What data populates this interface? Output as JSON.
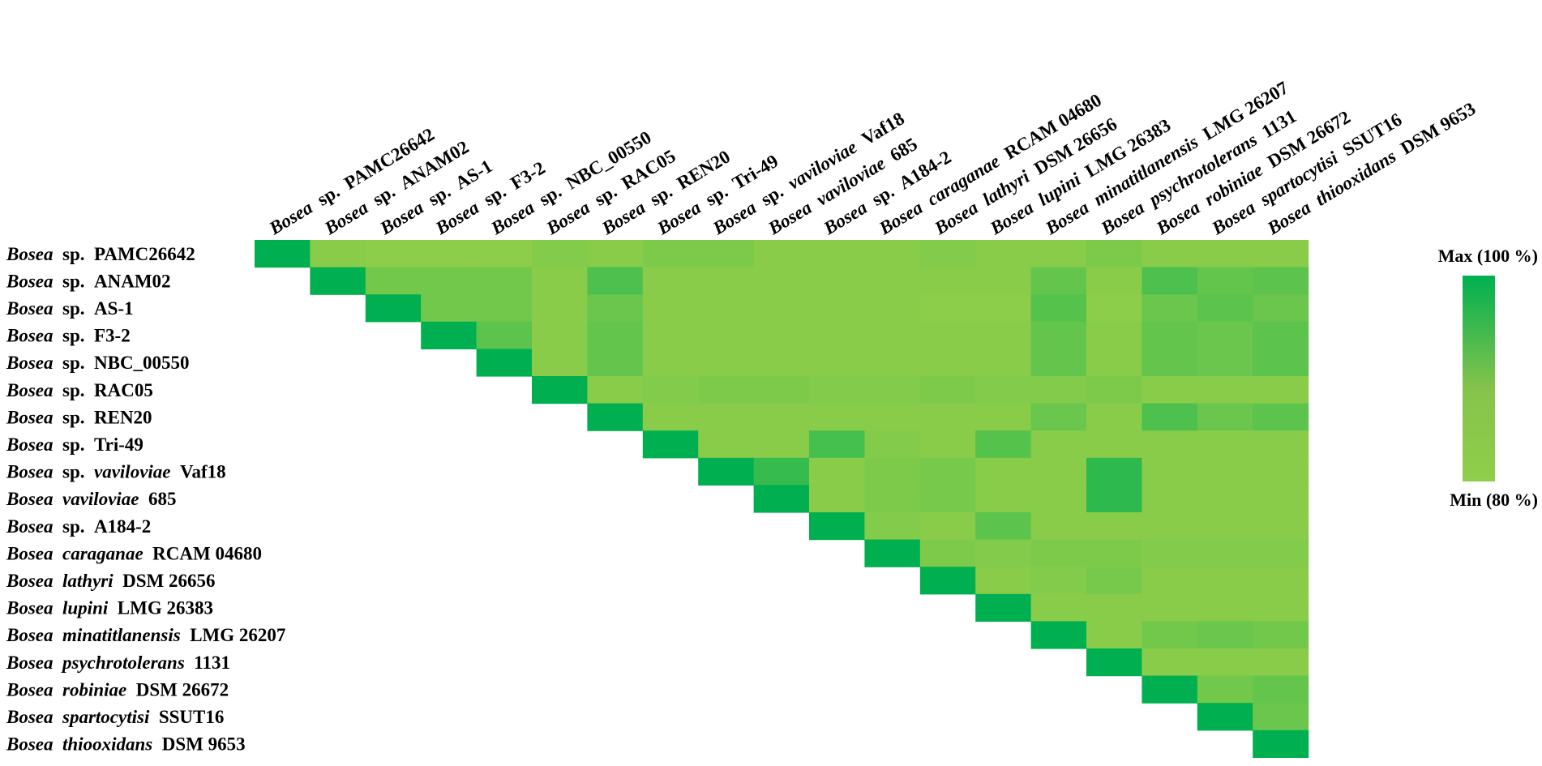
{
  "chart_data": {
    "type": "heatmap",
    "layout": "upper-triangular",
    "labels": [
      {
        "genus": "Bosea",
        "qualifier": "sp.",
        "epithet": "",
        "strain": "PAMC26642"
      },
      {
        "genus": "Bosea",
        "qualifier": "sp.",
        "epithet": "",
        "strain": "ANAM02"
      },
      {
        "genus": "Bosea",
        "qualifier": "sp.",
        "epithet": "",
        "strain": "AS-1"
      },
      {
        "genus": "Bosea",
        "qualifier": "sp.",
        "epithet": "",
        "strain": "F3-2"
      },
      {
        "genus": "Bosea",
        "qualifier": "sp.",
        "epithet": "",
        "strain": "NBC_00550"
      },
      {
        "genus": "Bosea",
        "qualifier": "sp.",
        "epithet": "",
        "strain": "RAC05"
      },
      {
        "genus": "Bosea",
        "qualifier": "sp.",
        "epithet": "",
        "strain": "REN20"
      },
      {
        "genus": "Bosea",
        "qualifier": "sp.",
        "epithet": "",
        "strain": "Tri-49"
      },
      {
        "genus": "Bosea",
        "qualifier": "sp.",
        "epithet": "vaviloviae",
        "strain": "Vaf18"
      },
      {
        "genus": "Bosea",
        "qualifier": "",
        "epithet": "vaviloviae",
        "strain": "685"
      },
      {
        "genus": "Bosea",
        "qualifier": "sp.",
        "epithet": "",
        "strain": "A184-2"
      },
      {
        "genus": "Bosea",
        "qualifier": "",
        "epithet": "caraganae",
        "strain": "RCAM 04680"
      },
      {
        "genus": "Bosea",
        "qualifier": "",
        "epithet": "lathyri",
        "strain": "DSM 26656"
      },
      {
        "genus": "Bosea",
        "qualifier": "",
        "epithet": "lupini",
        "strain": "LMG 26383"
      },
      {
        "genus": "Bosea",
        "qualifier": "",
        "epithet": "minatitlanensis",
        "strain": "LMG 26207"
      },
      {
        "genus": "Bosea",
        "qualifier": "",
        "epithet": "psychrotolerans",
        "strain": "1131"
      },
      {
        "genus": "Bosea",
        "qualifier": "",
        "epithet": "robiniae",
        "strain": "DSM 26672"
      },
      {
        "genus": "Bosea",
        "qualifier": "",
        "epithet": "spartocytisi",
        "strain": "SSUT16"
      },
      {
        "genus": "Bosea",
        "qualifier": "",
        "epithet": "thiooxidans",
        "strain": "DSM 9653"
      }
    ],
    "values": [
      [
        100,
        82,
        81,
        81,
        81,
        83,
        82,
        84,
        84,
        82,
        82,
        82,
        83,
        82,
        82,
        84,
        82,
        82,
        82
      ],
      [
        null,
        100,
        86,
        86,
        86,
        82,
        91,
        82,
        82,
        82,
        82,
        82,
        82,
        82,
        88,
        82,
        91,
        88,
        89
      ],
      [
        null,
        null,
        100,
        86,
        86,
        82,
        87,
        82,
        82,
        82,
        82,
        82,
        81,
        81,
        90,
        81,
        87,
        89,
        87
      ],
      [
        null,
        null,
        null,
        100,
        89,
        82,
        88,
        82,
        82,
        82,
        82,
        82,
        82,
        82,
        88,
        82,
        88,
        87,
        89
      ],
      [
        null,
        null,
        null,
        null,
        100,
        82,
        88,
        82,
        82,
        82,
        82,
        82,
        82,
        82,
        88,
        82,
        88,
        87,
        89
      ],
      [
        null,
        null,
        null,
        null,
        null,
        100,
        82,
        83,
        84,
        84,
        83,
        83,
        84,
        83,
        83,
        84,
        82,
        82,
        82
      ],
      [
        null,
        null,
        null,
        null,
        null,
        null,
        100,
        82,
        82,
        82,
        82,
        82,
        82,
        82,
        87,
        82,
        91,
        87,
        89
      ],
      [
        null,
        null,
        null,
        null,
        null,
        null,
        null,
        100,
        82,
        82,
        92,
        83,
        82,
        90,
        82,
        82,
        82,
        82,
        82
      ],
      [
        null,
        null,
        null,
        null,
        null,
        null,
        null,
        null,
        100,
        94,
        82,
        84,
        85,
        82,
        82,
        95,
        82,
        82,
        82
      ],
      [
        null,
        null,
        null,
        null,
        null,
        null,
        null,
        null,
        null,
        100,
        82,
        84,
        85,
        82,
        82,
        95,
        82,
        82,
        82
      ],
      [
        null,
        null,
        null,
        null,
        null,
        null,
        null,
        null,
        null,
        null,
        100,
        83,
        82,
        89,
        82,
        82,
        82,
        82,
        82
      ],
      [
        null,
        null,
        null,
        null,
        null,
        null,
        null,
        null,
        null,
        null,
        null,
        100,
        84,
        83,
        84,
        84,
        83,
        83,
        83
      ],
      [
        null,
        null,
        null,
        null,
        null,
        null,
        null,
        null,
        null,
        null,
        null,
        null,
        100,
        82,
        83,
        85,
        82,
        82,
        82
      ],
      [
        null,
        null,
        null,
        null,
        null,
        null,
        null,
        null,
        null,
        null,
        null,
        null,
        null,
        100,
        82,
        82,
        82,
        82,
        82
      ],
      [
        null,
        null,
        null,
        null,
        null,
        null,
        null,
        null,
        null,
        null,
        null,
        null,
        null,
        null,
        100,
        82,
        86,
        87,
        86
      ],
      [
        null,
        null,
        null,
        null,
        null,
        null,
        null,
        null,
        null,
        null,
        null,
        null,
        null,
        null,
        null,
        100,
        82,
        82,
        82
      ],
      [
        null,
        null,
        null,
        null,
        null,
        null,
        null,
        null,
        null,
        null,
        null,
        null,
        null,
        null,
        null,
        null,
        100,
        86,
        88
      ],
      [
        null,
        null,
        null,
        null,
        null,
        null,
        null,
        null,
        null,
        null,
        null,
        null,
        null,
        null,
        null,
        null,
        null,
        100,
        87
      ],
      [
        null,
        null,
        null,
        null,
        null,
        null,
        null,
        null,
        null,
        null,
        null,
        null,
        null,
        null,
        null,
        null,
        null,
        null,
        100
      ]
    ],
    "value_range": [
      80,
      100
    ],
    "colors": {
      "min": "#8fce4a",
      "mid": "#86c34c",
      "max": "#00b050"
    },
    "legend": {
      "position": "right",
      "max_label": "Max (100 %)",
      "min_label": "Min (80 %)"
    },
    "grid": false
  }
}
